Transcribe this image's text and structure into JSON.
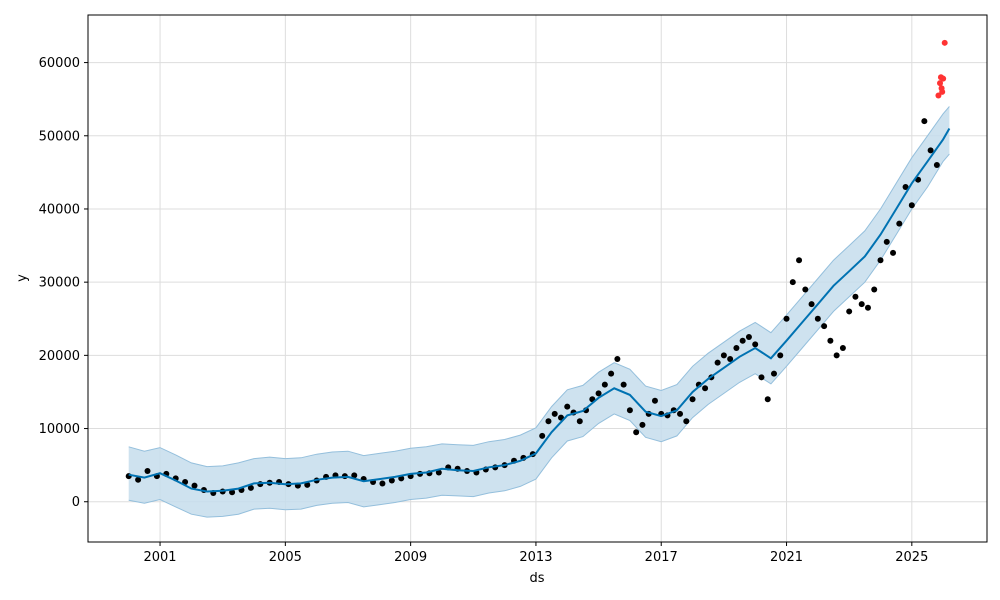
{
  "chart_data": {
    "type": "scatter",
    "title": "",
    "xlabel": "ds",
    "ylabel": "y",
    "grid": true,
    "x_unit": "year",
    "xlim": [
      1998.7,
      2027.4
    ],
    "ylim": [
      -5500,
      66500
    ],
    "x_ticks": [
      2001,
      2005,
      2009,
      2013,
      2017,
      2021,
      2025
    ],
    "y_ticks": [
      0,
      10000,
      20000,
      30000,
      40000,
      50000,
      60000
    ],
    "x_tick_labels": [
      "2001",
      "2005",
      "2009",
      "2013",
      "2017",
      "2021",
      "2025"
    ],
    "y_tick_labels": [
      "0",
      "10000",
      "20000",
      "30000",
      "40000",
      "50000",
      "60000"
    ],
    "colors": {
      "observed": "#000000",
      "forecast_line": "#0072B2",
      "uncertainty_band": "#C5DDEC",
      "uncertainty_edge": "#94BFDC",
      "recent_points": "#FF3333",
      "grid": "#DDDDDD"
    },
    "series": [
      {
        "kind": "trend",
        "x": [
          2000.0,
          2000.5,
          2001.0,
          2001.5,
          2002.0,
          2002.5,
          2003.0,
          2003.5,
          2004.0,
          2004.5,
          2005.0,
          2005.5,
          2006.0,
          2006.5,
          2007.0,
          2007.5,
          2008.0,
          2008.5,
          2009.0,
          2009.5,
          2010.0,
          2010.5,
          2011.0,
          2011.5,
          2012.0,
          2012.5,
          2013.0,
          2013.5,
          2014.0,
          2014.5,
          2015.0,
          2015.5,
          2016.0,
          2016.5,
          2017.0,
          2017.5,
          2018.0,
          2018.5,
          2019.0,
          2019.5,
          2020.0,
          2020.5,
          2021.0,
          2021.5,
          2022.0,
          2022.5,
          2023.0,
          2023.5,
          2024.0,
          2024.5,
          2025.0,
          2025.5,
          2026.0,
          2026.2
        ],
        "y": [
          3700,
          3300,
          3900,
          2900,
          1800,
          1400,
          1500,
          1800,
          2500,
          2600,
          2400,
          2500,
          3000,
          3300,
          3400,
          2800,
          3100,
          3400,
          3800,
          4000,
          4500,
          4300,
          4200,
          4700,
          5000,
          5600,
          6600,
          9500,
          11800,
          12400,
          14200,
          15500,
          14600,
          12300,
          11700,
          12500,
          15000,
          16800,
          18300,
          19800,
          21000,
          19600,
          22000,
          24500,
          27000,
          29500,
          31500,
          33500,
          36500,
          40000,
          43500,
          46500,
          49500,
          51000
        ]
      },
      {
        "kind": "uncertainty_upper",
        "x": [
          2000.0,
          2000.5,
          2001.0,
          2001.5,
          2002.0,
          2002.5,
          2003.0,
          2003.5,
          2004.0,
          2004.5,
          2005.0,
          2005.5,
          2006.0,
          2006.5,
          2007.0,
          2007.5,
          2008.0,
          2008.5,
          2009.0,
          2009.5,
          2010.0,
          2010.5,
          2011.0,
          2011.5,
          2012.0,
          2012.5,
          2013.0,
          2013.5,
          2014.0,
          2014.5,
          2015.0,
          2015.5,
          2016.0,
          2016.5,
          2017.0,
          2017.5,
          2018.0,
          2018.5,
          2019.0,
          2019.5,
          2020.0,
          2020.5,
          2021.0,
          2021.5,
          2022.0,
          2022.5,
          2023.0,
          2023.5,
          2024.0,
          2024.5,
          2025.0,
          2025.5,
          2026.0,
          2026.2
        ],
        "y": [
          7500,
          6900,
          7400,
          6400,
          5300,
          4800,
          4900,
          5300,
          5900,
          6100,
          5900,
          6000,
          6500,
          6800,
          6900,
          6300,
          6600,
          6900,
          7300,
          7500,
          7900,
          7800,
          7700,
          8200,
          8500,
          9100,
          10100,
          13000,
          15300,
          15900,
          17700,
          19000,
          18100,
          15800,
          15200,
          16000,
          18500,
          20300,
          21800,
          23300,
          24500,
          23100,
          25500,
          28000,
          30500,
          33000,
          35000,
          37000,
          40000,
          43500,
          47000,
          50000,
          53000,
          54000
        ]
      },
      {
        "kind": "uncertainty_lower",
        "x": [
          2000.0,
          2000.5,
          2001.0,
          2001.5,
          2002.0,
          2002.5,
          2003.0,
          2003.5,
          2004.0,
          2004.5,
          2005.0,
          2005.5,
          2006.0,
          2006.5,
          2007.0,
          2007.5,
          2008.0,
          2008.5,
          2009.0,
          2009.5,
          2010.0,
          2010.5,
          2011.0,
          2011.5,
          2012.0,
          2012.5,
          2013.0,
          2013.5,
          2014.0,
          2014.5,
          2015.0,
          2015.5,
          2016.0,
          2016.5,
          2017.0,
          2017.5,
          2018.0,
          2018.5,
          2019.0,
          2019.5,
          2020.0,
          2020.5,
          2021.0,
          2021.5,
          2022.0,
          2022.5,
          2023.0,
          2023.5,
          2024.0,
          2024.5,
          2025.0,
          2025.5,
          2026.0,
          2026.2
        ],
        "y": [
          200,
          -200,
          300,
          -700,
          -1700,
          -2100,
          -2000,
          -1700,
          -1000,
          -900,
          -1100,
          -1000,
          -500,
          -200,
          -100,
          -700,
          -400,
          -100,
          300,
          500,
          900,
          800,
          700,
          1200,
          1500,
          2100,
          3100,
          6000,
          8300,
          8900,
          10700,
          12000,
          11100,
          8800,
          8200,
          9000,
          11500,
          13300,
          14800,
          16300,
          17500,
          16100,
          18500,
          21000,
          23500,
          26000,
          28000,
          30000,
          33000,
          36500,
          40000,
          43000,
          46500,
          47500
        ]
      },
      {
        "kind": "observed",
        "x": [
          2000.0,
          2000.3,
          2000.6,
          2000.9,
          2001.2,
          2001.5,
          2001.8,
          2002.1,
          2002.4,
          2002.7,
          2003.0,
          2003.3,
          2003.6,
          2003.9,
          2004.2,
          2004.5,
          2004.8,
          2005.1,
          2005.4,
          2005.7,
          2006.0,
          2006.3,
          2006.6,
          2006.9,
          2007.2,
          2007.5,
          2007.8,
          2008.1,
          2008.4,
          2008.7,
          2009.0,
          2009.3,
          2009.6,
          2009.9,
          2010.2,
          2010.5,
          2010.8,
          2011.1,
          2011.4,
          2011.7,
          2012.0,
          2012.3,
          2012.6,
          2012.9,
          2013.2,
          2013.4,
          2013.6,
          2013.8,
          2014.0,
          2014.2,
          2014.4,
          2014.6,
          2014.8,
          2015.0,
          2015.2,
          2015.4,
          2015.6,
          2015.8,
          2016.0,
          2016.2,
          2016.4,
          2016.6,
          2016.8,
          2017.0,
          2017.2,
          2017.4,
          2017.6,
          2017.8,
          2018.0,
          2018.2,
          2018.4,
          2018.6,
          2018.8,
          2019.0,
          2019.2,
          2019.4,
          2019.6,
          2019.8,
          2020.0,
          2020.2,
          2020.4,
          2020.6,
          2020.8,
          2021.0,
          2021.2,
          2021.4,
          2021.6,
          2021.8,
          2022.0,
          2022.2,
          2022.4,
          2022.6,
          2022.8,
          2023.0,
          2023.2,
          2023.4,
          2023.6,
          2023.8,
          2024.0,
          2024.2,
          2024.4,
          2024.6,
          2024.8,
          2025.0,
          2025.2,
          2025.4,
          2025.6,
          2025.8
        ],
        "y": [
          3500,
          3000,
          4200,
          3500,
          3800,
          3200,
          2700,
          2200,
          1600,
          1200,
          1400,
          1300,
          1600,
          1900,
          2400,
          2600,
          2700,
          2400,
          2200,
          2300,
          2900,
          3400,
          3600,
          3500,
          3600,
          3100,
          2700,
          2500,
          2900,
          3200,
          3500,
          3800,
          3900,
          4000,
          4700,
          4500,
          4200,
          4000,
          4400,
          4700,
          5000,
          5600,
          6000,
          6500,
          9000,
          11000,
          12000,
          11500,
          13000,
          12200,
          11000,
          12500,
          14000,
          14800,
          16000,
          17500,
          19500,
          16000,
          12500,
          9500,
          10500,
          12000,
          13800,
          12000,
          11800,
          12500,
          12000,
          11000,
          14000,
          16000,
          15500,
          17000,
          19000,
          20000,
          19500,
          21000,
          22000,
          22500,
          21500,
          17000,
          14000,
          17500,
          20000,
          25000,
          30000,
          33000,
          29000,
          27000,
          25000,
          24000,
          22000,
          20000,
          21000,
          26000,
          28000,
          27000,
          26500,
          29000,
          33000,
          35500,
          34000,
          38000,
          43000,
          40500,
          44000,
          52000,
          48000,
          46000
        ],
        "color": "#000000"
      },
      {
        "kind": "recent",
        "x": [
          2025.85,
          2025.9,
          2025.93,
          2025.95,
          2025.97,
          2026.0,
          2026.05
        ],
        "y": [
          55500,
          57200,
          58000,
          56500,
          56000,
          57800,
          62700
        ],
        "color": "#FF3333"
      }
    ]
  }
}
